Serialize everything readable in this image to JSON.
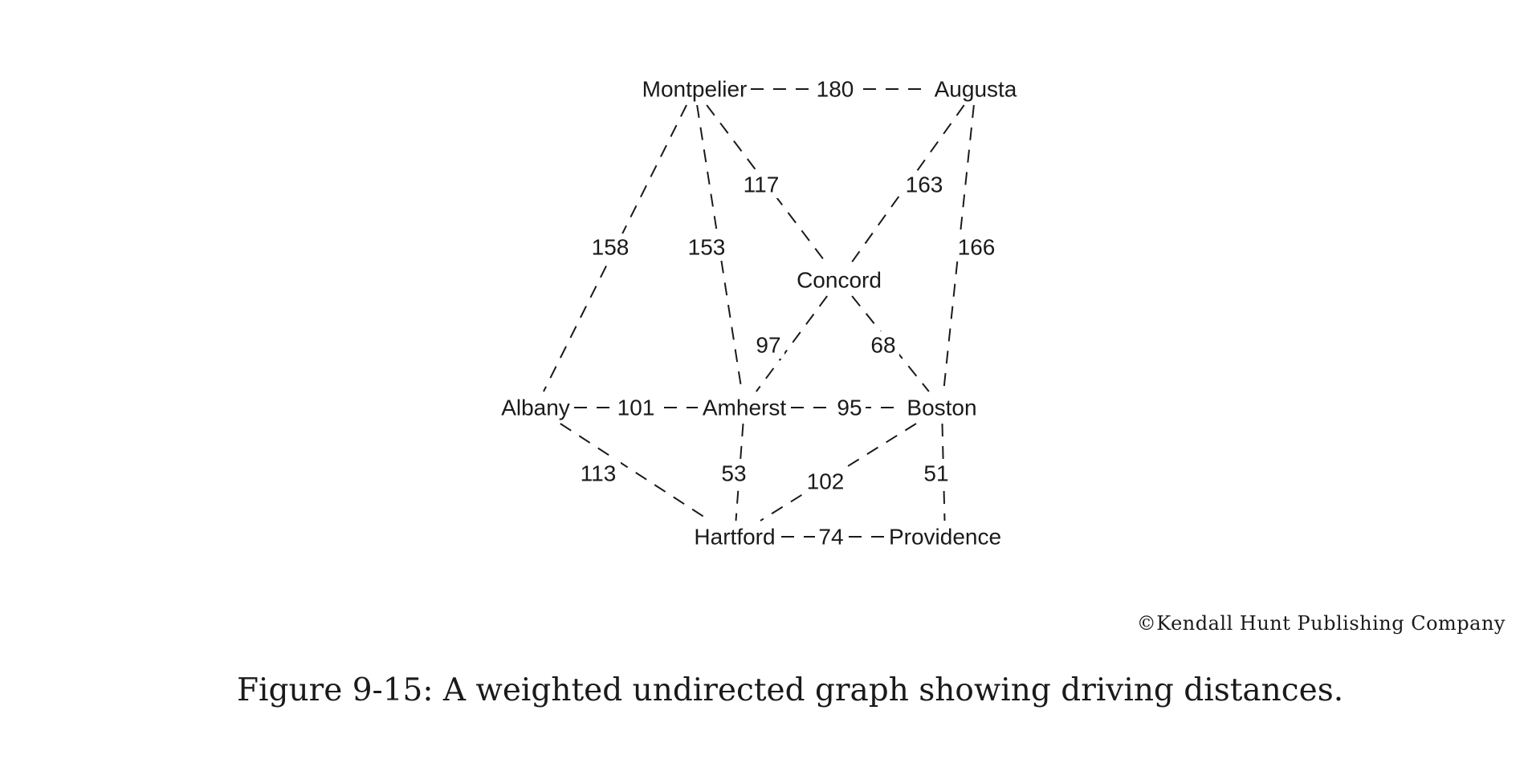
{
  "graph": {
    "nodes": [
      {
        "id": "montpelier",
        "label": "Montpelier"
      },
      {
        "id": "augusta",
        "label": "Augusta"
      },
      {
        "id": "concord",
        "label": "Concord"
      },
      {
        "id": "albany",
        "label": "Albany"
      },
      {
        "id": "amherst",
        "label": "Amherst"
      },
      {
        "id": "boston",
        "label": "Boston"
      },
      {
        "id": "hartford",
        "label": "Hartford"
      },
      {
        "id": "providence",
        "label": "Providence"
      }
    ],
    "edges": [
      {
        "from": "montpelier",
        "to": "augusta",
        "weight": "180"
      },
      {
        "from": "montpelier",
        "to": "albany",
        "weight": "158"
      },
      {
        "from": "montpelier",
        "to": "amherst",
        "weight": "153"
      },
      {
        "from": "montpelier",
        "to": "concord",
        "weight": "117"
      },
      {
        "from": "augusta",
        "to": "concord",
        "weight": "163"
      },
      {
        "from": "augusta",
        "to": "boston",
        "weight": "166"
      },
      {
        "from": "concord",
        "to": "amherst",
        "weight": "97"
      },
      {
        "from": "concord",
        "to": "boston",
        "weight": "68"
      },
      {
        "from": "albany",
        "to": "amherst",
        "weight": "101"
      },
      {
        "from": "amherst",
        "to": "boston",
        "weight": "95"
      },
      {
        "from": "albany",
        "to": "hartford",
        "weight": "113"
      },
      {
        "from": "amherst",
        "to": "hartford",
        "weight": "53"
      },
      {
        "from": "boston",
        "to": "hartford",
        "weight": "102"
      },
      {
        "from": "boston",
        "to": "providence",
        "weight": "51"
      },
      {
        "from": "hartford",
        "to": "providence",
        "weight": "74"
      }
    ]
  },
  "copyright": "©Kendall Hunt Publishing Company",
  "caption": "Figure 9-15: A weighted undirected graph showing driving distances."
}
